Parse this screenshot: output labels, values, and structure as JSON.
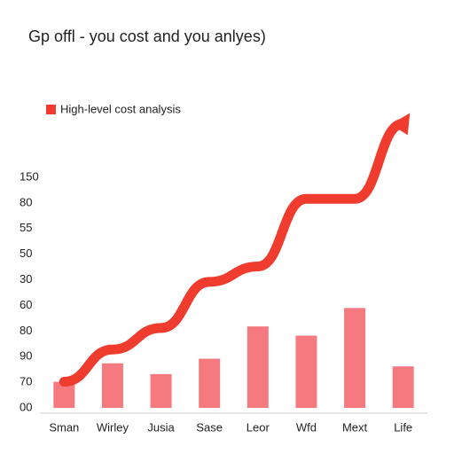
{
  "chart_data": {
    "type": "bar",
    "title": "Gp offl - you cost and you anlyes)",
    "y_labels": [
      "150",
      "80",
      "55",
      "50",
      "30",
      "60",
      "80",
      "90",
      "70",
      "00"
    ],
    "ylim": [
      0,
      150
    ],
    "categories": [
      "Sman",
      "Wirley",
      "Jusia",
      "Sase",
      "Leor",
      "Wfd",
      "Mext",
      "Life"
    ],
    "values": [
      17,
      29,
      22,
      32,
      53,
      47,
      65,
      27
    ],
    "color": "#f47a80",
    "series": [
      {
        "name": "High-level cost analysis",
        "type": "line",
        "color": "#f03c2e",
        "values": [
          17,
          38,
          52,
          82,
          92,
          136,
          136,
          185
        ]
      }
    ]
  }
}
